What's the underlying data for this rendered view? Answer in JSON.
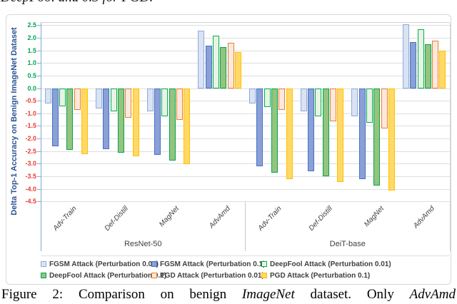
{
  "page": {
    "top_clipped_text": "DeepFool and 0.3 for PGD.",
    "caption_parts": [
      {
        "text": "Figure 2:  Comparison on benign ",
        "italic": false
      },
      {
        "text": "ImageNet",
        "italic": true
      },
      {
        "text": " dataset.  Only ",
        "italic": false
      },
      {
        "text": "AdvAmd",
        "italic": true
      }
    ]
  },
  "chart_data": {
    "type": "bar",
    "title": "",
    "xlabel": "",
    "ylabel": "Delta Top-1 Accuracy on Benign ImageNet Dataset",
    "ylim": [
      -4.5,
      2.5
    ],
    "ytick_step": 0.5,
    "yticks": [
      "2.5",
      "2.0",
      "1.5",
      "1.0",
      "0.5",
      "0.0",
      "-0.5",
      "-1.0",
      "-1.5",
      "-2.0",
      "-2.5",
      "-3.0",
      "-3.5",
      "-4.0",
      "-4.5"
    ],
    "grid": true,
    "legend_position": "bottom",
    "axis_colors": {
      "positive_tick": "#00a550",
      "negative_tick": "#e8392f",
      "axis_line": "#7fadd6",
      "ylabel_color": "#2e5395"
    },
    "sections": [
      {
        "label": "ResNet-50",
        "categories": [
          "Adv-Train",
          "Def-Distill",
          "MagNet",
          "AdvAmd"
        ]
      },
      {
        "label": "DeiT-base",
        "categories": [
          "Adv-Train",
          "Def-Distill",
          "MagNet",
          "AdvAmd"
        ]
      }
    ],
    "group_order_note": "values arrays hold 8 entries: ResNet-50 Adv-Train, Def-Distill, MagNet, AdvAmd then DeiT-base Adv-Train, Def-Distill, MagNet, AdvAmd",
    "series": [
      {
        "name": "FGSM Attack (Perturbation 0.01)",
        "fill": "#dae3f3",
        "border": "#8eaadb",
        "values": [
          -0.6,
          -0.8,
          -0.9,
          2.3,
          -0.6,
          -0.9,
          -1.1,
          2.55
        ]
      },
      {
        "name": "FGSM Attack (Perturbation 0.1)",
        "fill": "#8aa0d6",
        "border": "#4472c4",
        "values": [
          -2.3,
          -2.4,
          -2.65,
          1.7,
          -3.1,
          -3.3,
          -3.6,
          1.85
        ]
      },
      {
        "name": "DeepFool Attack (Perturbation 0.01)",
        "fill": "#e9f3e3",
        "border": "#00b050",
        "values": [
          -0.7,
          -0.9,
          -1.1,
          2.1,
          -0.75,
          -1.1,
          -1.35,
          2.35
        ]
      },
      {
        "name": "DeepFool Attack (Perturbation 0.1)",
        "fill": "#94c47d",
        "border": "#00a651",
        "values": [
          -2.45,
          -2.55,
          -2.85,
          1.65,
          -3.35,
          -3.5,
          -3.85,
          1.75
        ]
      },
      {
        "name": "PGD Attack (Perturbation 0.01)",
        "fill": "#fbe9dd",
        "border": "#ed7d31",
        "values": [
          -0.85,
          -1.15,
          -1.25,
          1.8,
          -0.85,
          -1.3,
          -1.6,
          1.9
        ]
      },
      {
        "name": "PGD Attack (Perturbation 0.1)",
        "fill": "#ffd965",
        "border": "#ffc000",
        "values": [
          -2.6,
          -2.7,
          -3.0,
          1.45,
          -3.6,
          -3.7,
          -4.05,
          1.5
        ]
      }
    ]
  }
}
